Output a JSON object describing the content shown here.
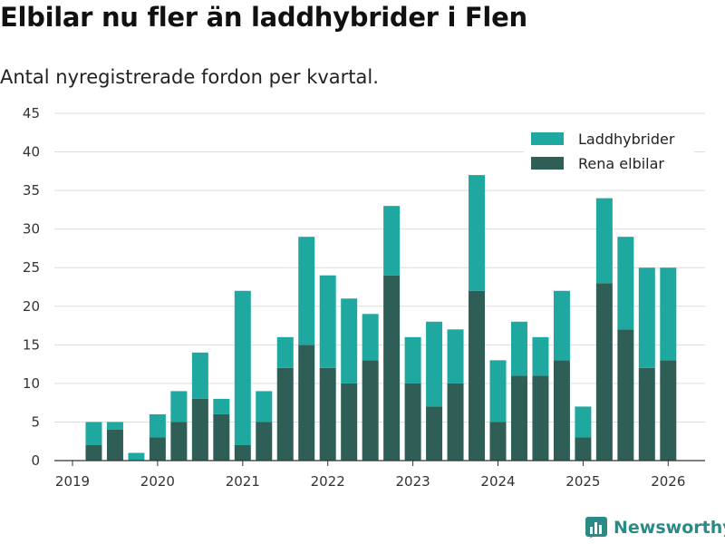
{
  "header": {
    "title": "Elbilar nu fler än laddhybrider i Flen",
    "subtitle": "Antal nyregistrerade fordon per kvartal."
  },
  "brand": {
    "name": "Newsworthy"
  },
  "colors": {
    "hybrid": "#1fa89f",
    "electric": "#2f5e57",
    "grid": "#dddddd",
    "axis": "#333333"
  },
  "chart_data": {
    "type": "bar",
    "stacked": true,
    "title": "Elbilar nu fler än laddhybrider i Flen",
    "subtitle": "Antal nyregistrerade fordon per kvartal.",
    "xlabel": "",
    "ylabel": "",
    "ylim": [
      0,
      45
    ],
    "yticks": [
      0,
      5,
      10,
      15,
      20,
      25,
      30,
      35,
      40,
      45
    ],
    "grid": true,
    "legend_position": "top-right",
    "x_tick_labels": [
      "2019",
      "2020",
      "2021",
      "2022",
      "2023",
      "2024",
      "2025",
      "2026"
    ],
    "categories": [
      "2019 Q2",
      "2019 Q3",
      "2019 Q4",
      "2020 Q1",
      "2020 Q2",
      "2020 Q3",
      "2020 Q4",
      "2021 Q1",
      "2021 Q2",
      "2021 Q3",
      "2021 Q4",
      "2022 Q1",
      "2022 Q2",
      "2022 Q3",
      "2022 Q4",
      "2023 Q1",
      "2023 Q2",
      "2023 Q3",
      "2023 Q4",
      "2024 Q1",
      "2024 Q2",
      "2024 Q3",
      "2024 Q4",
      "2025 Q1",
      "2025 Q2",
      "2025 Q3",
      "2025 Q4",
      "2026 Q1"
    ],
    "series": [
      {
        "name": "Rena elbilar",
        "values": [
          2,
          4,
          0,
          3,
          5,
          8,
          6,
          2,
          5,
          12,
          15,
          12,
          10,
          13,
          24,
          10,
          7,
          10,
          22,
          5,
          11,
          11,
          13,
          3,
          23,
          17,
          12,
          13
        ]
      },
      {
        "name": "Laddhybrider",
        "values": [
          3,
          1,
          1,
          3,
          4,
          6,
          2,
          20,
          4,
          4,
          14,
          12,
          11,
          6,
          9,
          6,
          11,
          7,
          15,
          8,
          7,
          5,
          9,
          4,
          11,
          12,
          13,
          12
        ]
      }
    ],
    "legend": [
      "Laddhybrider",
      "Rena elbilar"
    ]
  }
}
